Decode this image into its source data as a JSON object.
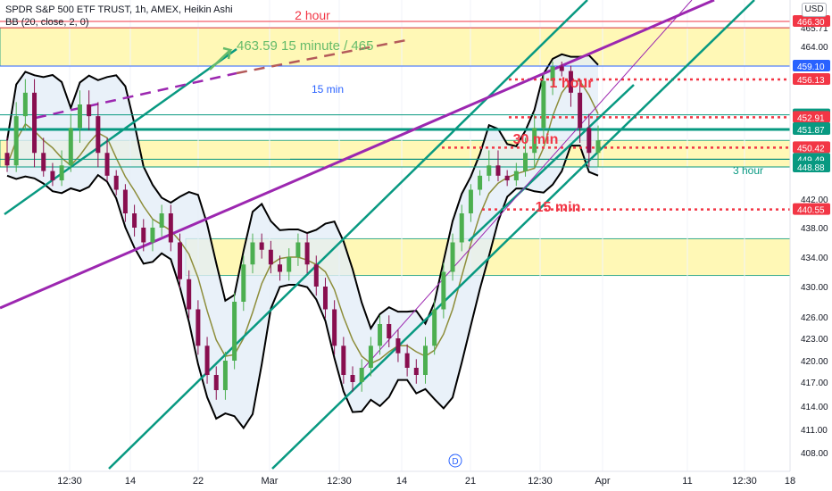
{
  "header": {
    "symbol_line": "SPDR S&P 500 ETF TRUST, 1h, AMEX, Heikin Ashi",
    "indicator_line": "BB (20, close, 2, 0)"
  },
  "currency_label": "USD",
  "colors": {
    "zone_fill": "#fff59d",
    "bb_line": "#000000",
    "bb_fill": "#e3eef8",
    "trend_green": "#089981",
    "trend_purple": "#9c27b0",
    "red_level": "#f23645",
    "blue_level": "#2962ff",
    "teal_level": "#00897b",
    "candle_up": "#4caf50",
    "candle_down": "#880e4f"
  },
  "chart_data": {
    "type": "candlestick",
    "title": "SPDR S&P 500 ETF TRUST, 1h, AMEX, Heikin Ashi",
    "ylim": [
      407,
      467.5
    ],
    "x_ticks": [
      "12:30",
      "14",
      "22",
      "Mar",
      "12:30",
      "14",
      "21",
      "12:30",
      "Apr",
      "11",
      "12:30",
      "18"
    ],
    "y_ticks": [
      408.0,
      411.0,
      414.0,
      417.0,
      420.0,
      423.0,
      426.0,
      430.0,
      434.0,
      438.0,
      442.0,
      448.88,
      449.49,
      450.42,
      451.87,
      451.95,
      452.91,
      453.12,
      456.13,
      459.1,
      464.0,
      465.71,
      466.3
    ],
    "price_labels": [
      {
        "value": 466.3,
        "text": "466.30",
        "color": "#f23645"
      },
      {
        "value": 459.1,
        "text": "459.10",
        "color": "#2962ff"
      },
      {
        "value": 456.13,
        "text": "456.13",
        "color": "#f23645"
      },
      {
        "value": 453.12,
        "text": "453.12",
        "color": "#089981"
      },
      {
        "value": 452.91,
        "text": "452.91",
        "color": "#f23645"
      },
      {
        "value": 451.95,
        "text": "451.95",
        "color": "#089981"
      },
      {
        "value": 451.87,
        "text": "451.87",
        "color": "#089981"
      },
      {
        "value": 450.42,
        "text": "450.42",
        "color": "#f23645"
      },
      {
        "value": 449.49,
        "text": "449.49",
        "color": "#089981"
      },
      {
        "value": 448.88,
        "text": "448.88",
        "color": "#089981"
      },
      {
        "value": 440.55,
        "text": "440.55",
        "color": "#f23645"
      }
    ],
    "zones": [
      {
        "top": 465.71,
        "bottom": 459.1
      },
      {
        "top": 451.0,
        "bottom": 448.88
      },
      {
        "top": 436.5,
        "bottom": 431.5
      }
    ],
    "level_lines": [
      {
        "value": 466.3,
        "color": "#f23645",
        "style": "solid"
      },
      {
        "value": 465.71,
        "color": "#f23645",
        "style": "solid"
      },
      {
        "value": 459.1,
        "color": "#2962ff",
        "style": "solid"
      },
      {
        "value": 453.12,
        "color": "#089981",
        "style": "solid"
      },
      {
        "value": 451.95,
        "color": "#089981",
        "style": "solid"
      },
      {
        "value": 451.87,
        "color": "#089981",
        "style": "thick"
      },
      {
        "value": 449.49,
        "color": "#089981",
        "style": "solid"
      },
      {
        "value": 448.88,
        "color": "#089981",
        "style": "solid"
      },
      {
        "value": 456.13,
        "color": "#f23645",
        "style": "dotted"
      },
      {
        "value": 452.91,
        "color": "#f23645",
        "style": "dotted"
      },
      {
        "value": 450.42,
        "color": "#f23645",
        "style": "dotted"
      },
      {
        "value": 440.55,
        "color": "#f23645",
        "style": "dotted"
      }
    ],
    "annotations": [
      {
        "text": "2 hour",
        "color": "#f23645"
      },
      {
        "text": "463.59 15 minute / 465",
        "color": "#66bb6a"
      },
      {
        "text": "15 min",
        "color": "#2962ff"
      },
      {
        "text": "1 hour",
        "color": "#f23645"
      },
      {
        "text": "30 min",
        "color": "#f23645"
      },
      {
        "text": "3 hour",
        "color": "#089981"
      },
      {
        "text": "15 min",
        "color": "#f23645"
      }
    ],
    "event_marker": "D",
    "heikin_ashi_close": [
      449,
      453,
      455,
      450,
      448,
      446,
      449,
      452,
      454,
      453,
      450,
      447,
      444,
      440,
      438,
      436,
      438,
      440,
      436,
      431,
      427,
      422,
      418,
      416,
      420,
      428,
      433,
      436,
      435,
      433,
      432,
      434,
      436,
      433,
      430,
      427,
      422,
      418,
      417,
      419,
      422,
      425,
      423,
      421,
      419,
      418,
      422,
      427,
      432,
      436,
      440,
      444,
      447,
      449,
      447,
      446,
      448,
      450,
      452,
      456,
      459,
      458,
      455,
      452,
      450,
      451
    ]
  }
}
